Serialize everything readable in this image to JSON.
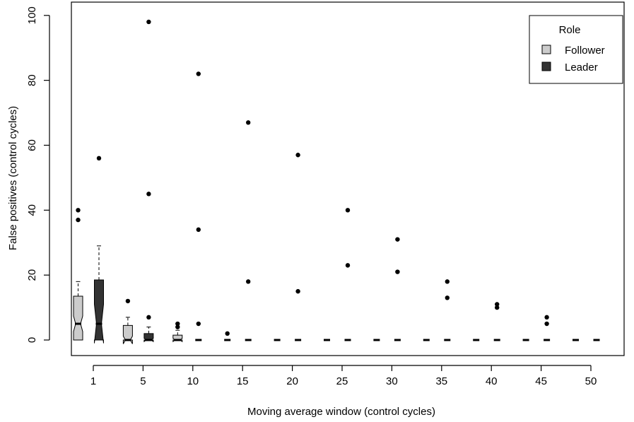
{
  "chart_data": {
    "type": "boxplot",
    "title": "",
    "xlabel": "Moving average window (control cycles)",
    "ylabel": "False positives (control cycles)",
    "ylim": [
      0,
      100
    ],
    "yticks": [
      0,
      20,
      40,
      60,
      80,
      100
    ],
    "categories": [
      "1",
      "5",
      "10",
      "15",
      "20",
      "25",
      "30",
      "35",
      "40",
      "45",
      "50"
    ],
    "legend": {
      "title": "Role",
      "position": "top-right",
      "entries": [
        {
          "name": "Follower",
          "color": "#cccccc"
        },
        {
          "name": "Leader",
          "color": "#333333"
        }
      ]
    },
    "series": [
      {
        "name": "Follower",
        "color": "#cccccc",
        "boxes": [
          {
            "category": "1",
            "min": 0,
            "q1": 0,
            "median": 5,
            "q3": 13.5,
            "max": 18,
            "notch": [
              2.6,
              7.4
            ],
            "outliers": [
              37,
              40
            ]
          },
          {
            "category": "5",
            "min": 0,
            "q1": 0,
            "median": 0,
            "q3": 4.5,
            "max": 7,
            "notch": [
              -1.2,
              1.2
            ],
            "outliers": [
              12
            ]
          },
          {
            "category": "10",
            "min": 0,
            "q1": 0,
            "median": 0,
            "q3": 1.5,
            "max": 3,
            "notch": [
              -0.5,
              0.5
            ],
            "outliers": [
              4,
              5
            ]
          },
          {
            "category": "15",
            "min": 0,
            "q1": 0,
            "median": 0,
            "q3": 0,
            "max": 0,
            "notch": [
              0,
              0
            ],
            "outliers": [
              2
            ]
          },
          {
            "category": "20",
            "min": 0,
            "q1": 0,
            "median": 0,
            "q3": 0,
            "max": 0,
            "notch": [
              0,
              0
            ],
            "outliers": []
          },
          {
            "category": "25",
            "min": 0,
            "q1": 0,
            "median": 0,
            "q3": 0,
            "max": 0,
            "notch": [
              0,
              0
            ],
            "outliers": []
          },
          {
            "category": "30",
            "min": 0,
            "q1": 0,
            "median": 0,
            "q3": 0,
            "max": 0,
            "notch": [
              0,
              0
            ],
            "outliers": []
          },
          {
            "category": "35",
            "min": 0,
            "q1": 0,
            "median": 0,
            "q3": 0,
            "max": 0,
            "notch": [
              0,
              0
            ],
            "outliers": []
          },
          {
            "category": "40",
            "min": 0,
            "q1": 0,
            "median": 0,
            "q3": 0,
            "max": 0,
            "notch": [
              0,
              0
            ],
            "outliers": []
          },
          {
            "category": "45",
            "min": 0,
            "q1": 0,
            "median": 0,
            "q3": 0,
            "max": 0,
            "notch": [
              0,
              0
            ],
            "outliers": []
          },
          {
            "category": "50",
            "min": 0,
            "q1": 0,
            "median": 0,
            "q3": 0,
            "max": 0,
            "notch": [
              0,
              0
            ],
            "outliers": []
          }
        ]
      },
      {
        "name": "Leader",
        "color": "#333333",
        "boxes": [
          {
            "category": "1",
            "min": 0,
            "q1": 0,
            "median": 5,
            "q3": 18.5,
            "max": 29,
            "notch": [
              -1.0,
              11.0
            ],
            "outliers": [
              56
            ]
          },
          {
            "category": "5",
            "min": 0,
            "q1": 0,
            "median": 0,
            "q3": 2,
            "max": 4,
            "notch": [
              -0.5,
              0.5
            ],
            "outliers": [
              7,
              45,
              98
            ]
          },
          {
            "category": "10",
            "min": 0,
            "q1": 0,
            "median": 0,
            "q3": 0,
            "max": 0,
            "notch": [
              0,
              0
            ],
            "outliers": [
              5,
              34,
              82
            ]
          },
          {
            "category": "15",
            "min": 0,
            "q1": 0,
            "median": 0,
            "q3": 0,
            "max": 0,
            "notch": [
              0,
              0
            ],
            "outliers": [
              18,
              67
            ]
          },
          {
            "category": "20",
            "min": 0,
            "q1": 0,
            "median": 0,
            "q3": 0,
            "max": 0,
            "notch": [
              0,
              0
            ],
            "outliers": [
              15,
              57
            ]
          },
          {
            "category": "25",
            "min": 0,
            "q1": 0,
            "median": 0,
            "q3": 0,
            "max": 0,
            "notch": [
              0,
              0
            ],
            "outliers": [
              23,
              40
            ]
          },
          {
            "category": "30",
            "min": 0,
            "q1": 0,
            "median": 0,
            "q3": 0,
            "max": 0,
            "notch": [
              0,
              0
            ],
            "outliers": [
              21,
              31
            ]
          },
          {
            "category": "35",
            "min": 0,
            "q1": 0,
            "median": 0,
            "q3": 0,
            "max": 0,
            "notch": [
              0,
              0
            ],
            "outliers": [
              13,
              18
            ]
          },
          {
            "category": "40",
            "min": 0,
            "q1": 0,
            "median": 0,
            "q3": 0,
            "max": 0,
            "notch": [
              0,
              0
            ],
            "outliers": [
              10,
              11
            ]
          },
          {
            "category": "45",
            "min": 0,
            "q1": 0,
            "median": 0,
            "q3": 0,
            "max": 0,
            "notch": [
              0,
              0
            ],
            "outliers": [
              5,
              7
            ]
          },
          {
            "category": "50",
            "min": 0,
            "q1": 0,
            "median": 0,
            "q3": 0,
            "max": 0,
            "notch": [
              0,
              0
            ],
            "outliers": []
          }
        ]
      }
    ]
  }
}
